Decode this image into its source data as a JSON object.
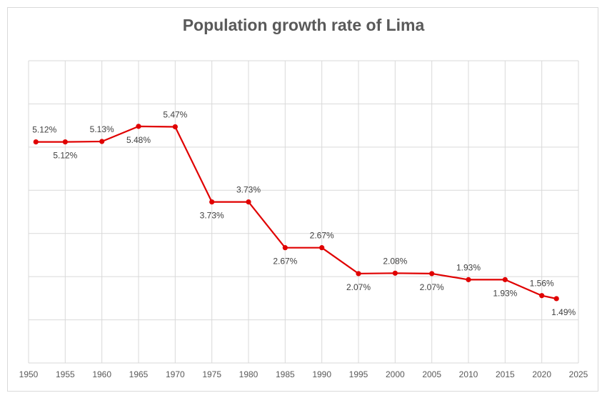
{
  "chart_data": {
    "type": "line",
    "title": "Population growth rate of Lima",
    "xlabel": "",
    "ylabel": "",
    "xlim": [
      1950,
      2025
    ],
    "ylim": [
      0,
      7
    ],
    "grid": true,
    "line_color": "#e00000",
    "x_ticks": [
      "1950",
      "1955",
      "1960",
      "1965",
      "1970",
      "1975",
      "1980",
      "1985",
      "1990",
      "1995",
      "2000",
      "2005",
      "2010",
      "2015",
      "2020",
      "2025"
    ],
    "points": [
      {
        "x": 1951,
        "y": 5.12,
        "label": "5.12%",
        "pos": "above"
      },
      {
        "x": 1955,
        "y": 5.12,
        "label": "5.12%",
        "pos": "below"
      },
      {
        "x": 1960,
        "y": 5.13,
        "label": "5.13%",
        "pos": "above"
      },
      {
        "x": 1965,
        "y": 5.48,
        "label": "5.48%",
        "pos": "below"
      },
      {
        "x": 1970,
        "y": 5.47,
        "label": "5.47%",
        "pos": "above"
      },
      {
        "x": 1975,
        "y": 3.73,
        "label": "3.73%",
        "pos": "below"
      },
      {
        "x": 1980,
        "y": 3.73,
        "label": "3.73%",
        "pos": "above"
      },
      {
        "x": 1985,
        "y": 2.67,
        "label": "2.67%",
        "pos": "below"
      },
      {
        "x": 1990,
        "y": 2.67,
        "label": "2.67%",
        "pos": "above"
      },
      {
        "x": 1995,
        "y": 2.07,
        "label": "2.07%",
        "pos": "below"
      },
      {
        "x": 2000,
        "y": 2.08,
        "label": "2.08%",
        "pos": "above"
      },
      {
        "x": 2005,
        "y": 2.07,
        "label": "2.07%",
        "pos": "below"
      },
      {
        "x": 2010,
        "y": 1.93,
        "label": "1.93%",
        "pos": "above"
      },
      {
        "x": 2015,
        "y": 1.93,
        "label": "1.93%",
        "pos": "below"
      },
      {
        "x": 2020,
        "y": 1.56,
        "label": "1.56%",
        "pos": "above"
      },
      {
        "x": 2022,
        "y": 1.49,
        "label": "1.49%",
        "pos": "below"
      }
    ]
  }
}
